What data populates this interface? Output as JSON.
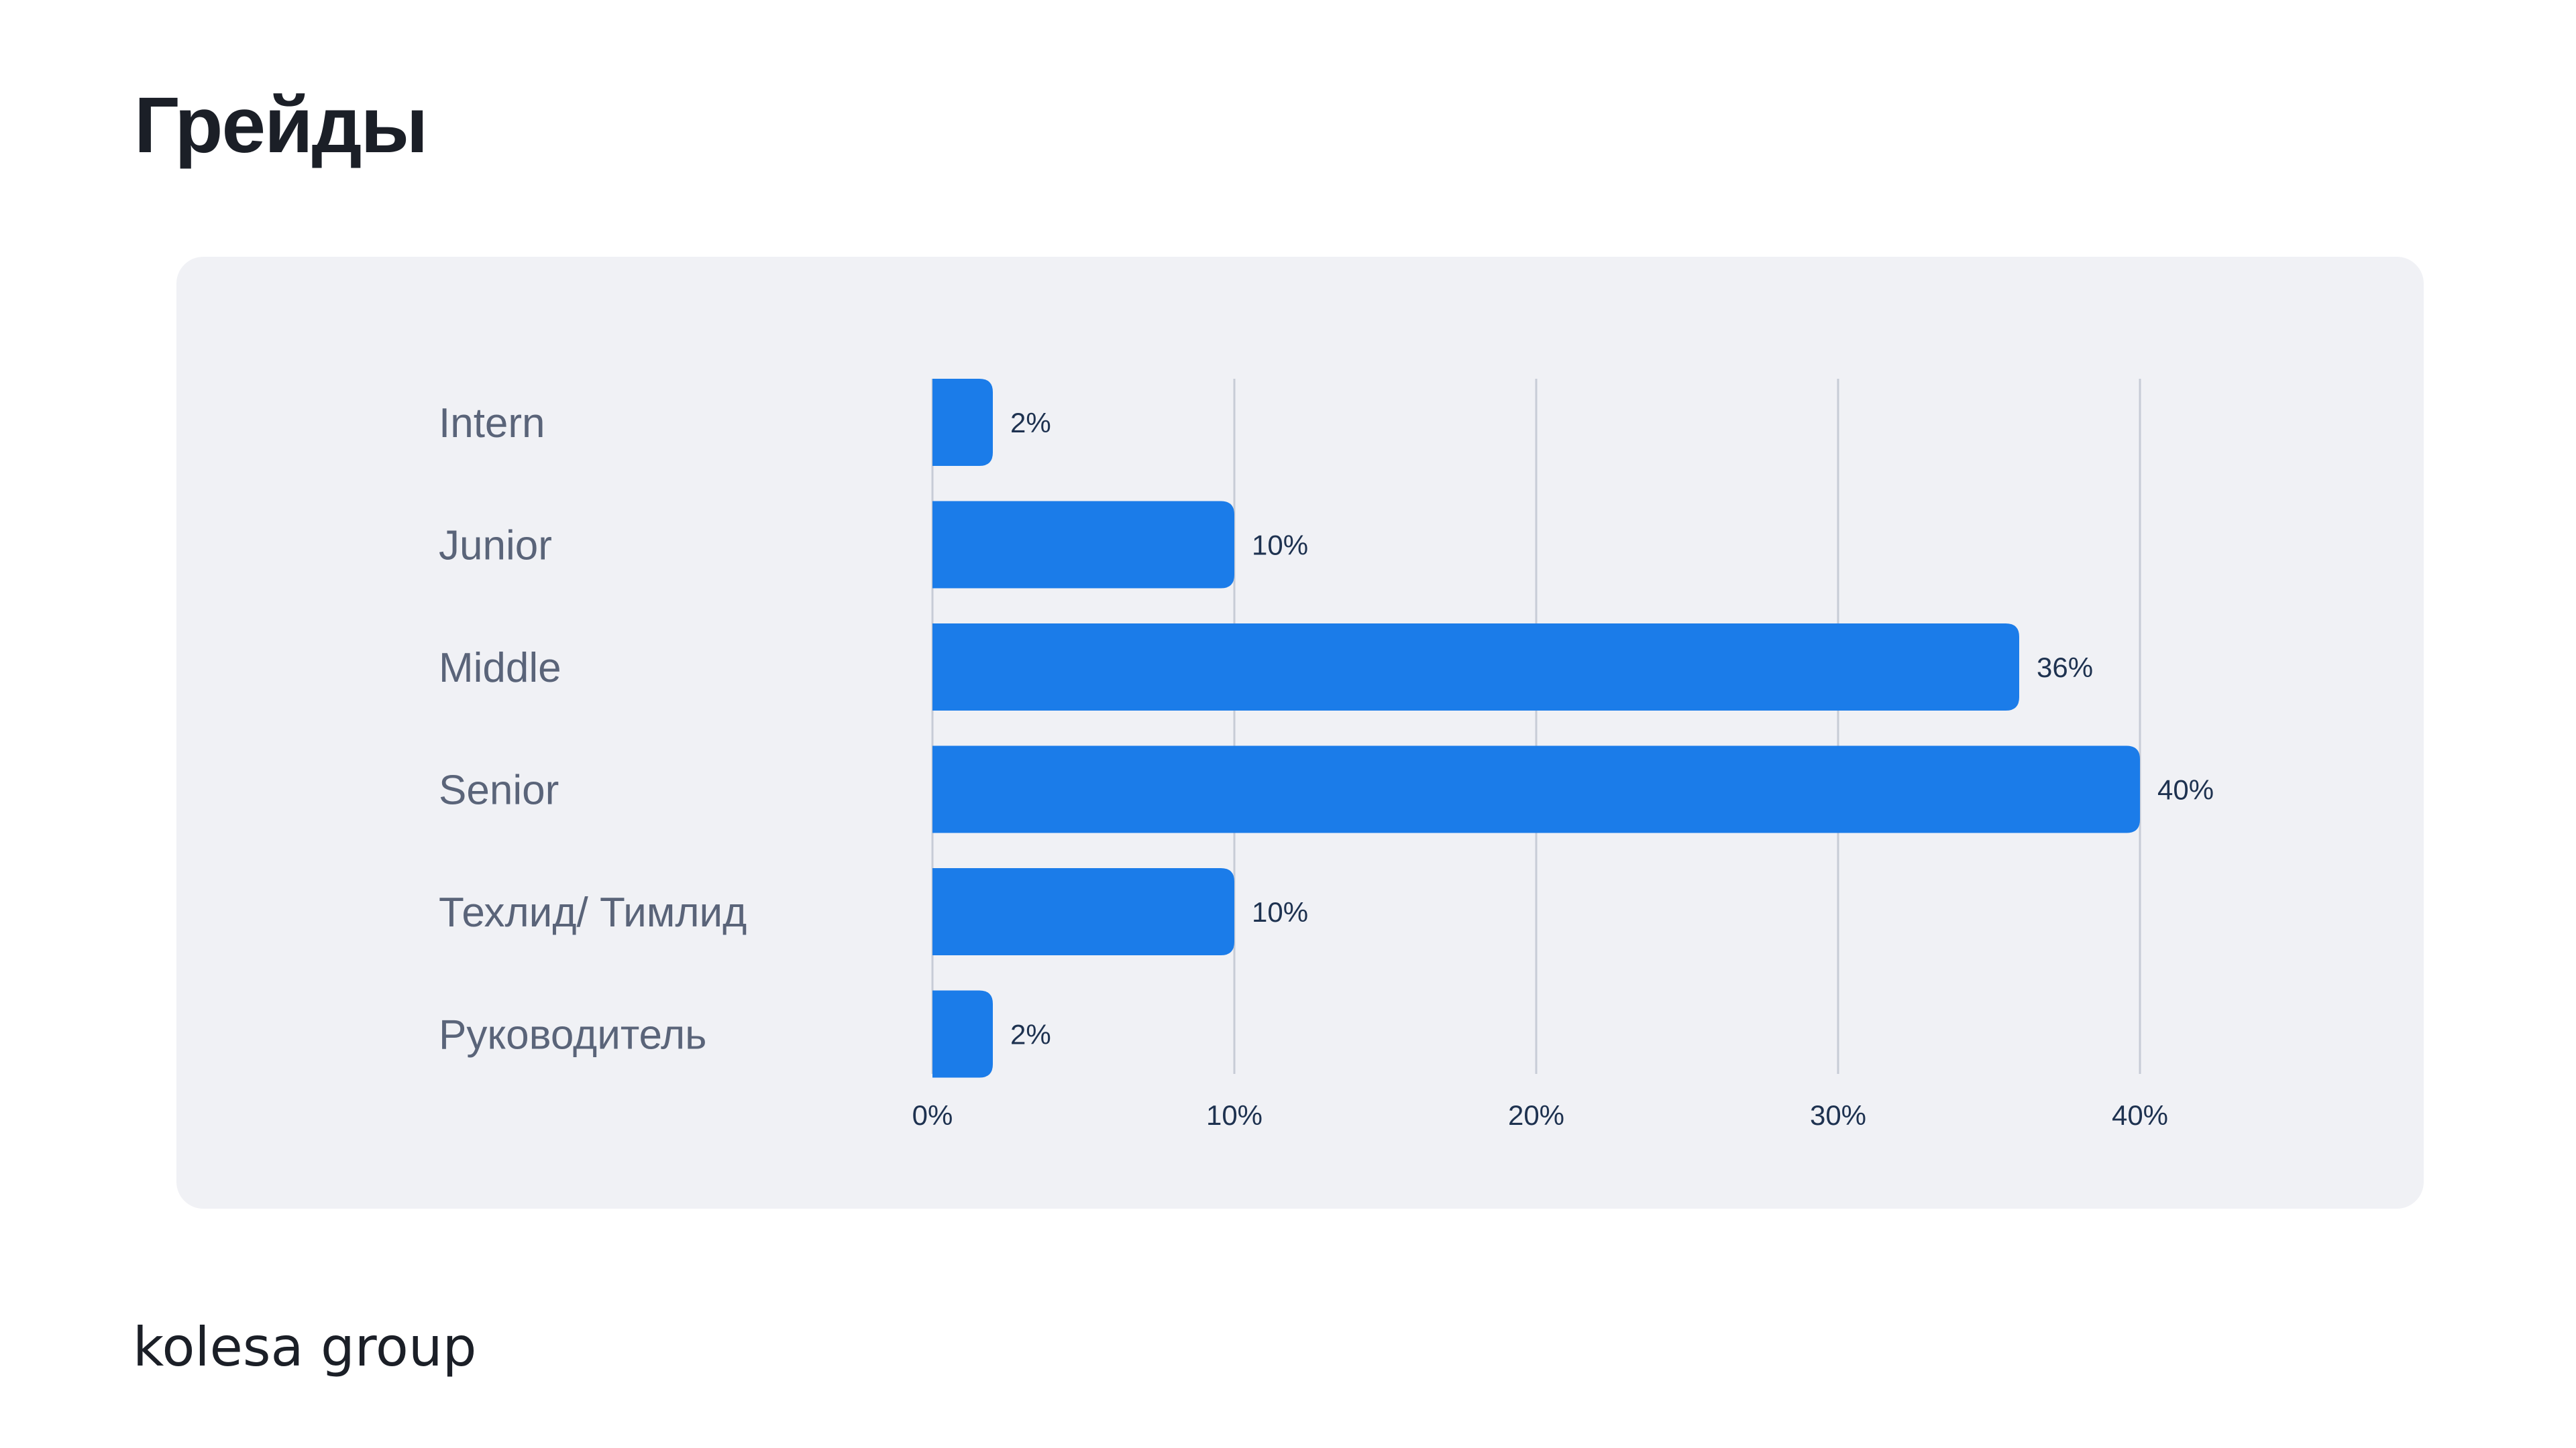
{
  "page": {
    "title": "Грейды",
    "logo_text": "kolesa group"
  },
  "colors": {
    "bar": "#1b7ce9",
    "card_background": "#f0f1f5",
    "gridline": "#c7ccd6",
    "category_text": "#5a6479",
    "value_text": "#1e3250",
    "title_text": "#1b1f27"
  },
  "chart_data": {
    "type": "bar",
    "orientation": "horizontal",
    "categories": [
      "Intern",
      "Junior",
      "Middle",
      "Senior",
      "Техлид/ Тимлид",
      "Руководитель"
    ],
    "values": [
      2,
      10,
      36,
      40,
      10,
      2
    ],
    "value_labels": [
      "2%",
      "10%",
      "36%",
      "40%",
      "10%",
      "2%"
    ],
    "xlim": [
      0,
      40
    ],
    "x_ticks": [
      0,
      10,
      20,
      30,
      40
    ],
    "x_tick_labels": [
      "0%",
      "10%",
      "20%",
      "30%",
      "40%"
    ],
    "grid": true,
    "title": "",
    "xlabel": "",
    "ylabel": ""
  }
}
